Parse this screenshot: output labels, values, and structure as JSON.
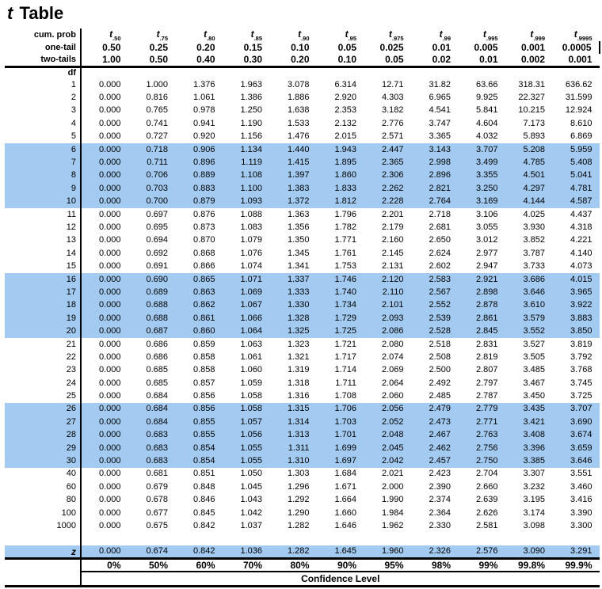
{
  "title": {
    "t": "t",
    "rest": " Table"
  },
  "header": {
    "cum_prob_label": "cum. prob",
    "one_tail_label": "one-tail",
    "two_tails_label": "two-tails",
    "df_label": "df",
    "t_base": "t",
    "t_subscripts": [
      ".50",
      ".75",
      ".80",
      ".85",
      ".90",
      ".95",
      ".975",
      ".99",
      ".995",
      ".999",
      ".9995"
    ],
    "one_tail_values": [
      "0.50",
      "0.25",
      "0.20",
      "0.15",
      "0.10",
      "0.05",
      "0.025",
      "0.01",
      "0.005",
      "0.001",
      "0.0005"
    ],
    "two_tails_values": [
      "1.00",
      "0.50",
      "0.40",
      "0.30",
      "0.20",
      "0.10",
      "0.05",
      "0.02",
      "0.01",
      "0.002",
      "0.001"
    ]
  },
  "rows": [
    {
      "df": "1",
      "highlight": false,
      "values": [
        "0.000",
        "1.000",
        "1.376",
        "1.963",
        "3.078",
        "6.314",
        "12.71",
        "31.82",
        "63.66",
        "318.31",
        "636.62"
      ]
    },
    {
      "df": "2",
      "highlight": false,
      "values": [
        "0.000",
        "0.816",
        "1.061",
        "1.386",
        "1.886",
        "2.920",
        "4.303",
        "6.965",
        "9.925",
        "22.327",
        "31.599"
      ]
    },
    {
      "df": "3",
      "highlight": false,
      "values": [
        "0.000",
        "0.765",
        "0.978",
        "1.250",
        "1.638",
        "2.353",
        "3.182",
        "4.541",
        "5.841",
        "10.215",
        "12.924"
      ]
    },
    {
      "df": "4",
      "highlight": false,
      "values": [
        "0.000",
        "0.741",
        "0.941",
        "1.190",
        "1.533",
        "2.132",
        "2.776",
        "3.747",
        "4.604",
        "7.173",
        "8.610"
      ]
    },
    {
      "df": "5",
      "highlight": false,
      "values": [
        "0.000",
        "0.727",
        "0.920",
        "1.156",
        "1.476",
        "2.015",
        "2.571",
        "3.365",
        "4.032",
        "5.893",
        "6.869"
      ]
    },
    {
      "df": "6",
      "highlight": true,
      "values": [
        "0.000",
        "0.718",
        "0.906",
        "1.134",
        "1.440",
        "1.943",
        "2.447",
        "3.143",
        "3.707",
        "5.208",
        "5.959"
      ]
    },
    {
      "df": "7",
      "highlight": true,
      "values": [
        "0.000",
        "0.711",
        "0.896",
        "1.119",
        "1.415",
        "1.895",
        "2.365",
        "2.998",
        "3.499",
        "4.785",
        "5.408"
      ]
    },
    {
      "df": "8",
      "highlight": true,
      "values": [
        "0.000",
        "0.706",
        "0.889",
        "1.108",
        "1.397",
        "1.860",
        "2.306",
        "2.896",
        "3.355",
        "4.501",
        "5.041"
      ]
    },
    {
      "df": "9",
      "highlight": true,
      "values": [
        "0.000",
        "0.703",
        "0.883",
        "1.100",
        "1.383",
        "1.833",
        "2.262",
        "2.821",
        "3.250",
        "4.297",
        "4.781"
      ]
    },
    {
      "df": "10",
      "highlight": true,
      "values": [
        "0.000",
        "0.700",
        "0.879",
        "1.093",
        "1.372",
        "1.812",
        "2.228",
        "2.764",
        "3.169",
        "4.144",
        "4.587"
      ]
    },
    {
      "df": "11",
      "highlight": false,
      "values": [
        "0.000",
        "0.697",
        "0.876",
        "1.088",
        "1.363",
        "1.796",
        "2.201",
        "2.718",
        "3.106",
        "4.025",
        "4.437"
      ]
    },
    {
      "df": "12",
      "highlight": false,
      "values": [
        "0.000",
        "0.695",
        "0.873",
        "1.083",
        "1.356",
        "1.782",
        "2.179",
        "2.681",
        "3.055",
        "3.930",
        "4.318"
      ]
    },
    {
      "df": "13",
      "highlight": false,
      "values": [
        "0.000",
        "0.694",
        "0.870",
        "1.079",
        "1.350",
        "1.771",
        "2.160",
        "2.650",
        "3.012",
        "3.852",
        "4.221"
      ]
    },
    {
      "df": "14",
      "highlight": false,
      "values": [
        "0.000",
        "0.692",
        "0.868",
        "1.076",
        "1.345",
        "1.761",
        "2.145",
        "2.624",
        "2.977",
        "3.787",
        "4.140"
      ]
    },
    {
      "df": "15",
      "highlight": false,
      "values": [
        "0.000",
        "0.691",
        "0.866",
        "1.074",
        "1.341",
        "1.753",
        "2.131",
        "2.602",
        "2.947",
        "3.733",
        "4.073"
      ]
    },
    {
      "df": "16",
      "highlight": true,
      "values": [
        "0.000",
        "0.690",
        "0.865",
        "1.071",
        "1.337",
        "1.746",
        "2.120",
        "2.583",
        "2.921",
        "3.686",
        "4.015"
      ]
    },
    {
      "df": "17",
      "highlight": true,
      "values": [
        "0.000",
        "0.689",
        "0.863",
        "1.069",
        "1.333",
        "1.740",
        "2.110",
        "2.567",
        "2.898",
        "3.646",
        "3.965"
      ]
    },
    {
      "df": "18",
      "highlight": true,
      "values": [
        "0.000",
        "0.688",
        "0.862",
        "1.067",
        "1.330",
        "1.734",
        "2.101",
        "2.552",
        "2.878",
        "3.610",
        "3.922"
      ]
    },
    {
      "df": "19",
      "highlight": true,
      "values": [
        "0.000",
        "0.688",
        "0.861",
        "1.066",
        "1.328",
        "1.729",
        "2.093",
        "2.539",
        "2.861",
        "3.579",
        "3.883"
      ]
    },
    {
      "df": "20",
      "highlight": true,
      "values": [
        "0.000",
        "0.687",
        "0.860",
        "1.064",
        "1.325",
        "1.725",
        "2.086",
        "2.528",
        "2.845",
        "3.552",
        "3.850"
      ]
    },
    {
      "df": "21",
      "highlight": false,
      "values": [
        "0.000",
        "0.686",
        "0.859",
        "1.063",
        "1.323",
        "1.721",
        "2.080",
        "2.518",
        "2.831",
        "3.527",
        "3.819"
      ]
    },
    {
      "df": "22",
      "highlight": false,
      "values": [
        "0.000",
        "0.686",
        "0.858",
        "1.061",
        "1.321",
        "1.717",
        "2.074",
        "2.508",
        "2.819",
        "3.505",
        "3.792"
      ]
    },
    {
      "df": "23",
      "highlight": false,
      "values": [
        "0.000",
        "0.685",
        "0.858",
        "1.060",
        "1.319",
        "1.714",
        "2.069",
        "2.500",
        "2.807",
        "3.485",
        "3.768"
      ]
    },
    {
      "df": "24",
      "highlight": false,
      "values": [
        "0.000",
        "0.685",
        "0.857",
        "1.059",
        "1.318",
        "1.711",
        "2.064",
        "2.492",
        "2.797",
        "3.467",
        "3.745"
      ]
    },
    {
      "df": "25",
      "highlight": false,
      "values": [
        "0.000",
        "0.684",
        "0.856",
        "1.058",
        "1.316",
        "1.708",
        "2.060",
        "2.485",
        "2.787",
        "3.450",
        "3.725"
      ]
    },
    {
      "df": "26",
      "highlight": true,
      "values": [
        "0.000",
        "0.684",
        "0.856",
        "1.058",
        "1.315",
        "1.706",
        "2.056",
        "2.479",
        "2.779",
        "3.435",
        "3.707"
      ]
    },
    {
      "df": "27",
      "highlight": true,
      "values": [
        "0.000",
        "0.684",
        "0.855",
        "1.057",
        "1.314",
        "1.703",
        "2.052",
        "2.473",
        "2.771",
        "3.421",
        "3.690"
      ]
    },
    {
      "df": "28",
      "highlight": true,
      "values": [
        "0.000",
        "0.683",
        "0.855",
        "1.056",
        "1.313",
        "1.701",
        "2.048",
        "2.467",
        "2.763",
        "3.408",
        "3.674"
      ]
    },
    {
      "df": "29",
      "highlight": true,
      "values": [
        "0.000",
        "0.683",
        "0.854",
        "1.055",
        "1.311",
        "1.699",
        "2.045",
        "2.462",
        "2.756",
        "3.396",
        "3.659"
      ]
    },
    {
      "df": "30",
      "highlight": true,
      "values": [
        "0.000",
        "0.683",
        "0.854",
        "1.055",
        "1.310",
        "1.697",
        "2.042",
        "2.457",
        "2.750",
        "3.385",
        "3.646"
      ]
    },
    {
      "df": "40",
      "highlight": false,
      "values": [
        "0.000",
        "0.681",
        "0.851",
        "1.050",
        "1.303",
        "1.684",
        "2.021",
        "2.423",
        "2.704",
        "3.307",
        "3.551"
      ]
    },
    {
      "df": "60",
      "highlight": false,
      "values": [
        "0.000",
        "0.679",
        "0.848",
        "1.045",
        "1.296",
        "1.671",
        "2.000",
        "2.390",
        "2.660",
        "3.232",
        "3.460"
      ]
    },
    {
      "df": "80",
      "highlight": false,
      "values": [
        "0.000",
        "0.678",
        "0.846",
        "1.043",
        "1.292",
        "1.664",
        "1.990",
        "2.374",
        "2.639",
        "3.195",
        "3.416"
      ]
    },
    {
      "df": "100",
      "highlight": false,
      "values": [
        "0.000",
        "0.677",
        "0.845",
        "1.042",
        "1.290",
        "1.660",
        "1.984",
        "2.364",
        "2.626",
        "3.174",
        "3.390"
      ]
    },
    {
      "df": "1000",
      "highlight": false,
      "values": [
        "0.000",
        "0.675",
        "0.842",
        "1.037",
        "1.282",
        "1.646",
        "1.962",
        "2.330",
        "2.581",
        "3.098",
        "3.300"
      ]
    },
    {
      "df": "z",
      "highlight": true,
      "gap_before": true,
      "is_z": true,
      "values": [
        "0.000",
        "0.674",
        "0.842",
        "1.036",
        "1.282",
        "1.645",
        "1.960",
        "2.326",
        "2.576",
        "3.090",
        "3.291"
      ]
    }
  ],
  "footer": {
    "confidence_values": [
      "0%",
      "50%",
      "60%",
      "70%",
      "80%",
      "90%",
      "95%",
      "98%",
      "99%",
      "99.8%",
      "99.9%"
    ],
    "confidence_label": "Confidence Level"
  },
  "colors": {
    "highlight": "#A3CBF2",
    "line": "#000000"
  }
}
